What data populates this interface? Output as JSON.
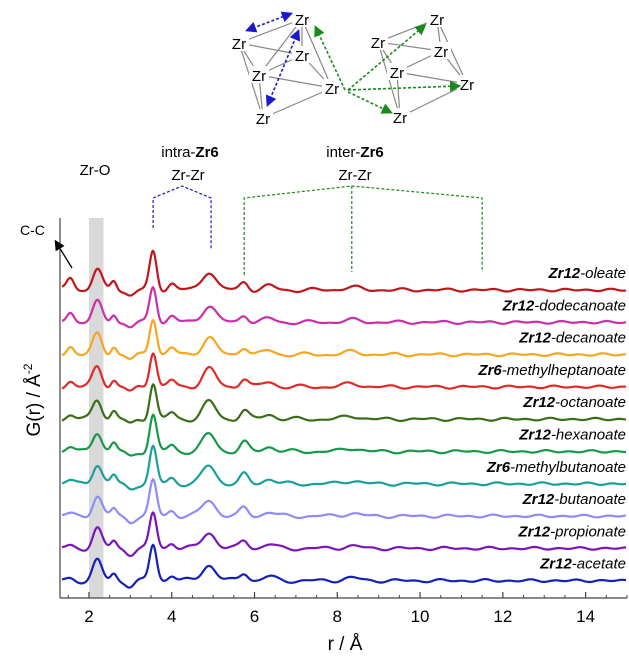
{
  "chart_data": {
    "type": "line",
    "title": "",
    "xlabel": "r / Å",
    "ylabel_main": "G(r) / Å",
    "ylabel_exp": "-2",
    "xlim": [
      1.3,
      15
    ],
    "x_ticks": [
      "2",
      "4",
      "6",
      "8",
      "10",
      "12",
      "14"
    ],
    "legend": "curve labels at right end of each offset trace",
    "annotations": {
      "cc": "C-C",
      "zro": "Zr-O",
      "intra_prefix": "intra-",
      "intra_bold": "Zr6",
      "intra_pair": "Zr-Zr",
      "inter_prefix": "inter-",
      "inter_bold": "Zr6",
      "inter_pair": "Zr-Zr",
      "zro_band": [
        2.0,
        2.35
      ],
      "intra_bracket_r": [
        3.55,
        4.95
      ],
      "inter_bracket_r": [
        5.75,
        8.35,
        11.5
      ]
    },
    "peaks_r": [
      1.55,
      2.2,
      2.6,
      3.55,
      4.0,
      4.9,
      5.75,
      6.35,
      8.35
    ],
    "series": [
      {
        "bold": "Zr12",
        "suffix": "-oleate",
        "color": "#c0171c",
        "amps": [
          0.65,
          1.0,
          0.5,
          1.9,
          0.35,
          0.95,
          0.4,
          0.2,
          0.14
        ]
      },
      {
        "bold": "Zr12",
        "suffix": "-dodecanoate",
        "color": "#cc2ea8",
        "amps": [
          0.55,
          1.0,
          0.45,
          1.8,
          0.3,
          0.85,
          0.38,
          0.18,
          0.12
        ]
      },
      {
        "bold": "Zr12",
        "suffix": "-decanoate",
        "color": "#f5a623",
        "amps": [
          0.45,
          1.0,
          0.45,
          1.85,
          0.3,
          0.85,
          0.4,
          0.2,
          0.14
        ]
      },
      {
        "bold": "Zr6",
        "suffix": "-methylheptanoate",
        "color": "#e02a2a",
        "amps": [
          0.3,
          1.0,
          0.35,
          1.8,
          0.3,
          0.9,
          0.45,
          0.25,
          0.16
        ]
      },
      {
        "bold": "Zr12",
        "suffix": "-octanoate",
        "color": "#3c6e1a",
        "amps": [
          0.2,
          1.0,
          0.4,
          1.8,
          0.3,
          0.85,
          0.45,
          0.25,
          0.15
        ]
      },
      {
        "bold": "Zr12",
        "suffix": "-hexanoate",
        "color": "#17984a",
        "amps": [
          0.2,
          1.0,
          0.4,
          1.8,
          0.3,
          0.85,
          0.45,
          0.25,
          0.16
        ]
      },
      {
        "bold": "Zr6",
        "suffix": "-methylbutanoate",
        "color": "#1aa09a",
        "amps": [
          0.15,
          1.0,
          0.4,
          1.8,
          0.3,
          0.9,
          0.45,
          0.25,
          0.15
        ]
      },
      {
        "bold": "Zr12",
        "suffix": "-butanoate",
        "color": "#8f8cf5",
        "amps": [
          0.1,
          1.0,
          0.35,
          1.75,
          0.3,
          0.8,
          0.4,
          0.2,
          0.13
        ]
      },
      {
        "bold": "Zr12",
        "suffix": "-propionate",
        "color": "#7a16b8",
        "amps": [
          0.1,
          1.0,
          0.35,
          1.75,
          0.3,
          0.8,
          0.4,
          0.2,
          0.12
        ]
      },
      {
        "bold": "Zr12",
        "suffix": "-acetate",
        "color": "#1420b8",
        "amps": [
          0.1,
          1.0,
          0.35,
          1.8,
          0.3,
          0.8,
          0.4,
          0.2,
          0.14
        ]
      }
    ]
  },
  "structure_labels": {
    "zr": "Zr"
  },
  "colors": {
    "axis": "#444444",
    "intra_bracket": "#1a1acc",
    "inter_bracket": "#1a8a1a",
    "band": "#d9d9d9",
    "bonds": "#888888"
  }
}
